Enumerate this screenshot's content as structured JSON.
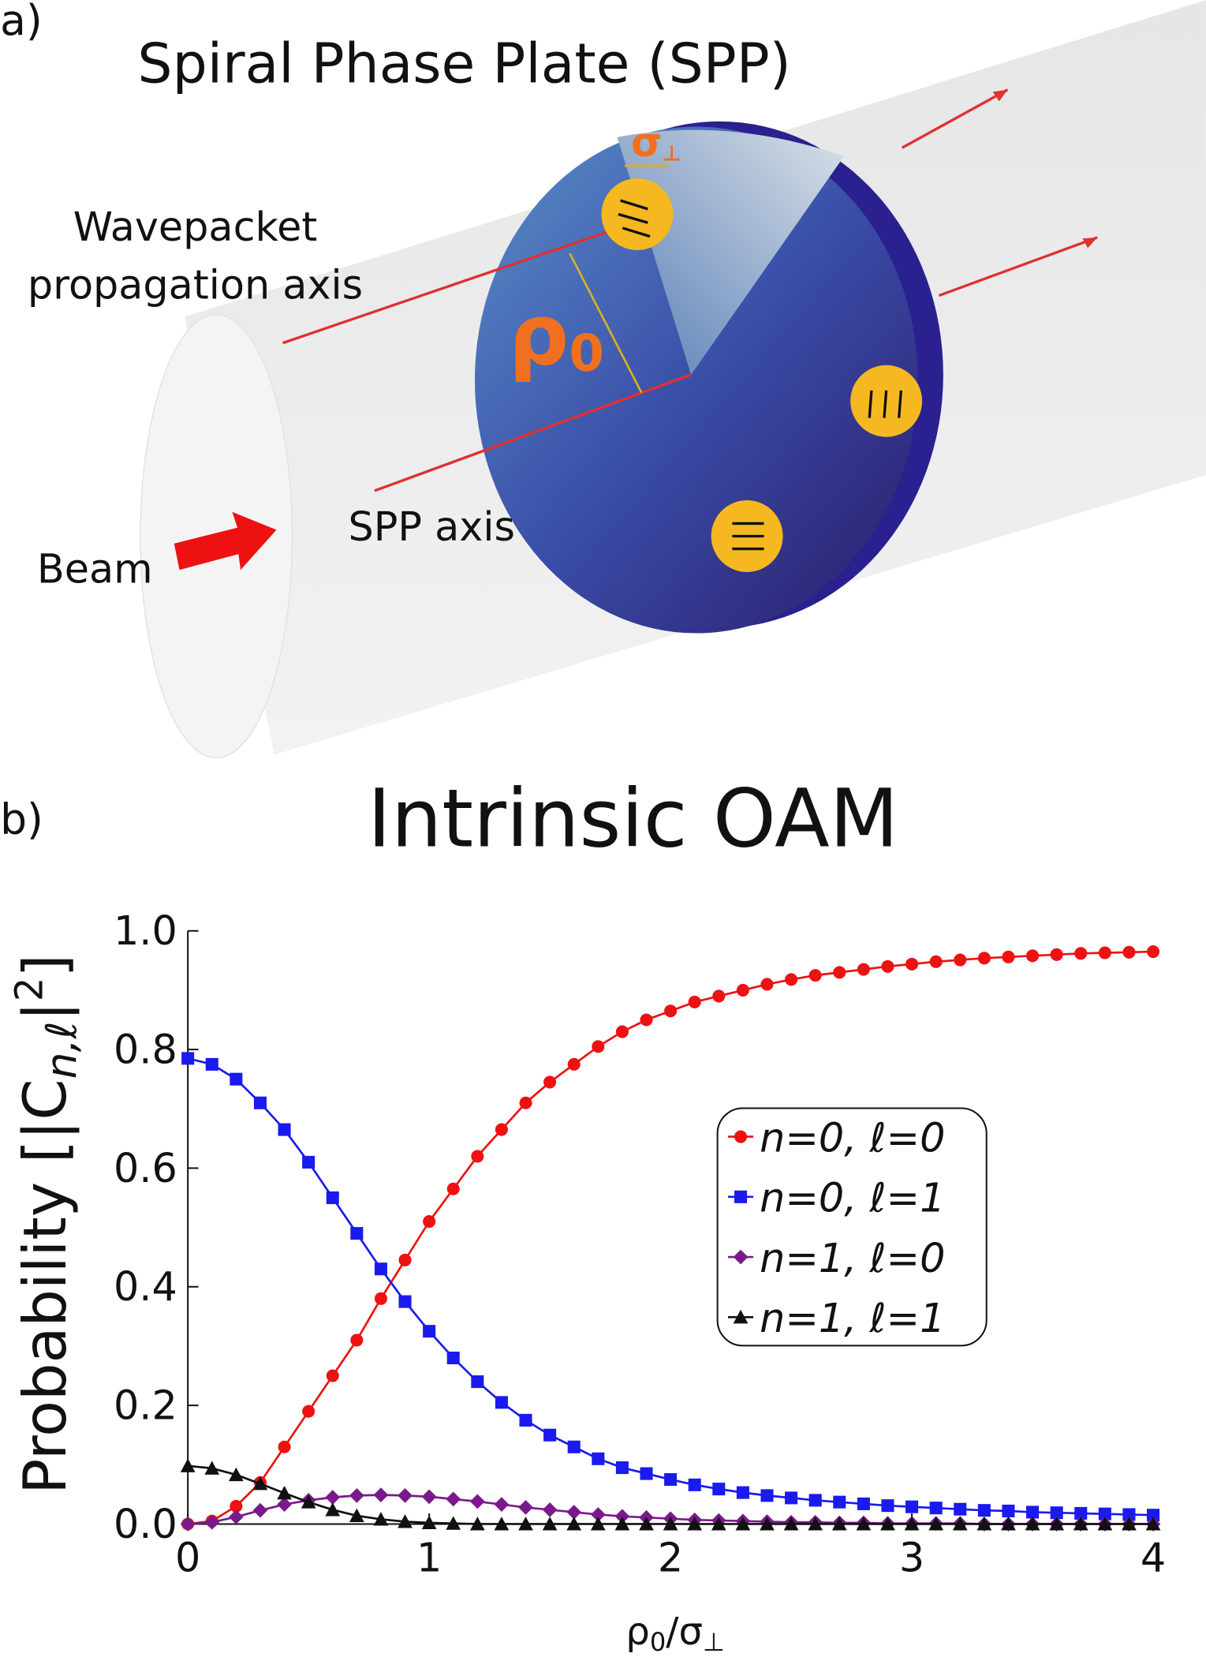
{
  "panel_a": {
    "label": "a)",
    "title": "Spiral Phase Plate (SPP)",
    "wavepacket_1": "Wavepacket",
    "wavepacket_2": "propagation axis",
    "rho": "ρ",
    "rho_sub": "0",
    "sigma": "σ",
    "sigma_sub": "⊥",
    "spp_axis": "SPP axis",
    "beam": "Beam"
  },
  "panel_b_label": "b)",
  "chart_data": {
    "type": "line",
    "title": "Intrinsic OAM",
    "y_label": {
      "text": "Probability [|C",
      "sub": "n,ℓ",
      "mid": "|",
      "sup": "2",
      "end": "]"
    },
    "x_label": {
      "text": "ρ",
      "sub": "0",
      "mid": "/σ",
      "sub2": "⊥"
    },
    "x": [
      0,
      0.1,
      0.2,
      0.3,
      0.4,
      0.5,
      0.6,
      0.7,
      0.8,
      0.9,
      1.0,
      1.1,
      1.2,
      1.3,
      1.4,
      1.5,
      1.6,
      1.7,
      1.8,
      1.9,
      2.0,
      2.1,
      2.2,
      2.3,
      2.4,
      2.5,
      2.6,
      2.7,
      2.8,
      2.9,
      3.0,
      3.1,
      3.2,
      3.3,
      3.4,
      3.5,
      3.6,
      3.7,
      3.8,
      3.9,
      4.0
    ],
    "series": [
      {
        "name": "n=0, ℓ=0",
        "color": "#ee1111",
        "marker": "circle",
        "values": [
          0,
          0.005,
          0.03,
          0.07,
          0.13,
          0.19,
          0.25,
          0.31,
          0.38,
          0.445,
          0.51,
          0.565,
          0.62,
          0.665,
          0.71,
          0.745,
          0.775,
          0.805,
          0.83,
          0.85,
          0.865,
          0.88,
          0.89,
          0.9,
          0.91,
          0.918,
          0.925,
          0.93,
          0.935,
          0.94,
          0.944,
          0.948,
          0.951,
          0.954,
          0.956,
          0.958,
          0.96,
          0.962,
          0.963,
          0.964,
          0.965
        ]
      },
      {
        "name": "n=0, ℓ=1",
        "color": "#1a1aee",
        "marker": "square",
        "values": [
          0.785,
          0.775,
          0.75,
          0.71,
          0.665,
          0.61,
          0.55,
          0.49,
          0.43,
          0.375,
          0.325,
          0.28,
          0.24,
          0.205,
          0.175,
          0.15,
          0.13,
          0.11,
          0.095,
          0.085,
          0.075,
          0.066,
          0.059,
          0.053,
          0.048,
          0.044,
          0.04,
          0.037,
          0.034,
          0.031,
          0.029,
          0.027,
          0.025,
          0.023,
          0.022,
          0.02,
          0.019,
          0.018,
          0.017,
          0.016,
          0.015
        ]
      },
      {
        "name": "n=1, ℓ=0",
        "color": "#7a1a8a",
        "marker": "diamond",
        "values": [
          0,
          0.003,
          0.012,
          0.023,
          0.033,
          0.04,
          0.045,
          0.048,
          0.049,
          0.048,
          0.046,
          0.042,
          0.038,
          0.033,
          0.028,
          0.024,
          0.02,
          0.016,
          0.013,
          0.011,
          0.009,
          0.007,
          0.006,
          0.005,
          0.004,
          0.003,
          0.003,
          0.002,
          0.002,
          0.001,
          0.001,
          0.001,
          0.001,
          0,
          0,
          0,
          0,
          0,
          0,
          0,
          0
        ]
      },
      {
        "name": "n=1, ℓ=1",
        "color": "#111111",
        "marker": "triangle",
        "values": [
          0.098,
          0.094,
          0.083,
          0.068,
          0.052,
          0.037,
          0.024,
          0.014,
          0.008,
          0.004,
          0.002,
          0.001,
          0,
          0,
          0,
          0,
          0,
          0,
          0,
          0,
          0,
          0,
          0,
          0,
          0,
          0,
          0,
          0,
          0,
          0,
          0,
          0,
          0,
          0,
          0,
          0,
          0,
          0,
          0,
          0,
          0
        ]
      }
    ],
    "xlim": [
      0,
      4
    ],
    "xticks": [
      0,
      1,
      2,
      3,
      4
    ],
    "ylim": [
      0,
      1
    ],
    "yticks": [
      {
        "value": 0,
        "label": "0.0"
      },
      {
        "value": 0.2,
        "label": "0.2"
      },
      {
        "value": 0.4,
        "label": "0.4"
      },
      {
        "value": 0.6,
        "label": "0.6"
      },
      {
        "value": 0.8,
        "label": "0.8"
      },
      {
        "value": 1,
        "label": "1.0"
      }
    ],
    "legend": "right"
  }
}
